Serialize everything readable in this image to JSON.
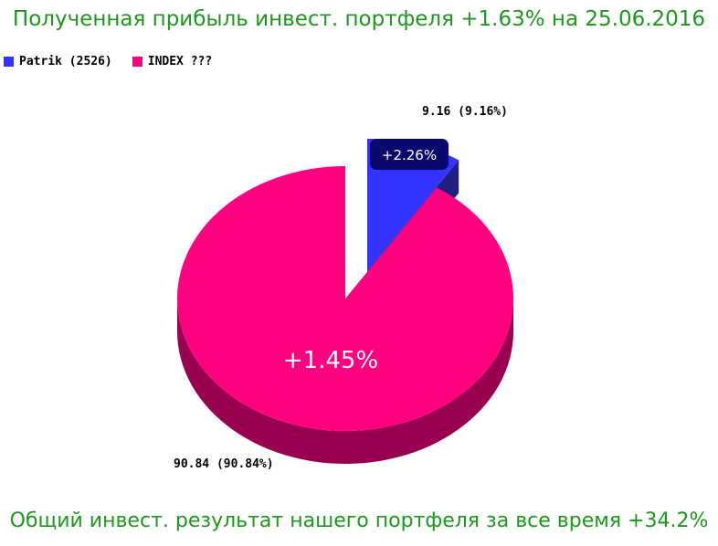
{
  "title": "Полученная прибыль инвест. портфеля +1.63% на 25.06.2016",
  "footer": "Общий  инвест. результат нашего портфеля за все время +34.2%",
  "colors": {
    "text_green": "#1a9a1a",
    "patrik": "#3333ff",
    "patrik_side": "#1f1f80",
    "index": "#ff0080",
    "index_side": "#9a0050",
    "annotation_box": "#0a0a6e"
  },
  "chart_data": {
    "type": "pie",
    "slices": [
      {
        "name": "Patrik (2526)",
        "value": 9.16,
        "percent": 9.16,
        "label": "9.16 (9.16%)",
        "annotation": "+2.26%"
      },
      {
        "name": "INDEX ???",
        "value": 90.84,
        "percent": 90.84,
        "label": "90.84 (90.84%)",
        "annotation": "+1.45%"
      }
    ],
    "legend_position": "top-left",
    "exploded_slice": "Patrik (2526)",
    "three_d": true
  }
}
